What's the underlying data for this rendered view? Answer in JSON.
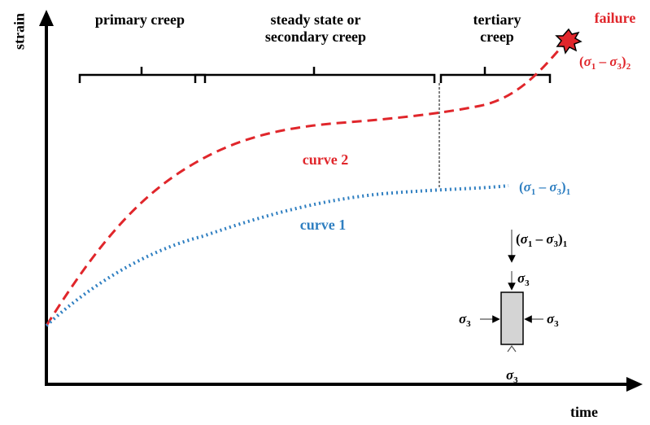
{
  "axes": {
    "x_label": "time",
    "y_label": "strain"
  },
  "stages": {
    "primary": "primary creep",
    "secondary": "steady state or secondary creep",
    "tertiary": "tertiary creep"
  },
  "curves": {
    "curve2": {
      "label": "curve 2",
      "color": "#e0262b",
      "stress_sub": "2"
    },
    "curve1": {
      "label": "curve 1",
      "color": "#2f7fc1",
      "stress_sub": "1"
    }
  },
  "failure_label": "failure",
  "stress": {
    "sigma1": "σ",
    "sub1": "1",
    "minus": " – ",
    "sigma3": "σ",
    "sub3": "3"
  },
  "specimen": {
    "applied_sub": "1",
    "confining": "σ",
    "confining_sub": "3"
  }
}
